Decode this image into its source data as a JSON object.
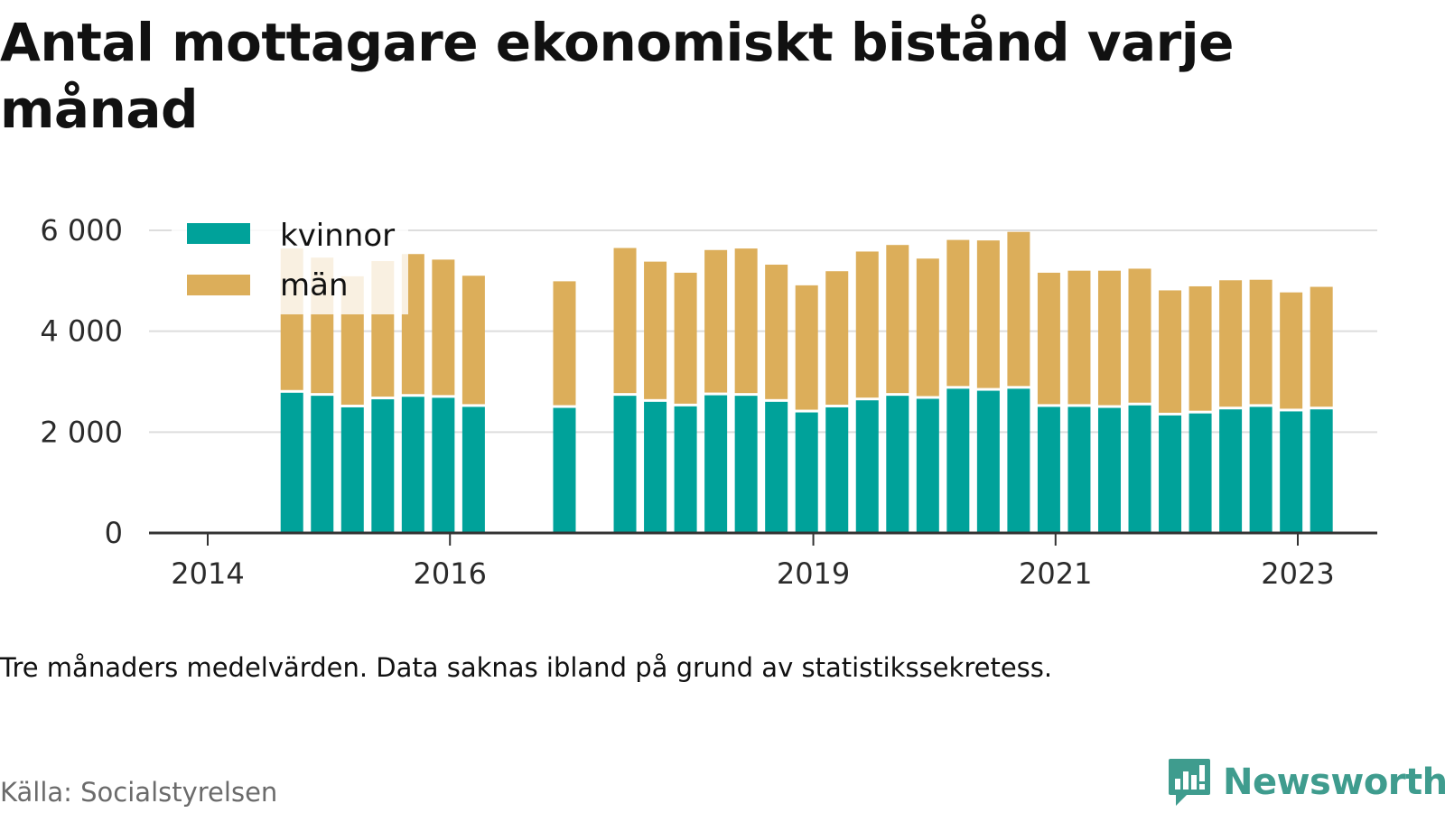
{
  "title": "Antal mottagare ekonomiskt bistånd varje månad",
  "note": "Tre månaders medelvärden. Data saknas ibland på grund av statistikssekretess.",
  "source": "Källa: Socialstyrelsen",
  "brand": {
    "name": "Newsworthy",
    "icon": "bar-chart-speech-bubble-icon",
    "color": "#3f9c8e"
  },
  "colors": {
    "kvinnor": "#00a29a",
    "man": "#dcae5a",
    "grid": "#dddddd",
    "axis": "#333333"
  },
  "chart_data": {
    "type": "bar",
    "stacked": true,
    "title": "Antal mottagare ekonomiskt bistånd varje månad",
    "xlabel": "",
    "ylabel": "",
    "ylim": [
      0,
      6000
    ],
    "yticks": [
      0,
      2000,
      4000,
      6000
    ],
    "ytick_labels": [
      "0",
      "2 000",
      "4 000",
      "6 000"
    ],
    "xticks": [
      2014,
      2016,
      2019,
      2021,
      2023
    ],
    "xtick_labels": [
      "2014",
      "2016",
      "2019",
      "2021",
      "2023"
    ],
    "grid": true,
    "legend": {
      "placement": "top-left",
      "entries": [
        "kvinnor",
        "män"
      ]
    },
    "x": [
      "2014-08",
      "2014-11",
      "2015-02",
      "2015-05",
      "2015-08",
      "2015-11",
      "2016-02",
      "2016-11",
      "2017-05",
      "2017-08",
      "2017-11",
      "2018-02",
      "2018-05",
      "2018-08",
      "2018-11",
      "2019-02",
      "2019-05",
      "2019-08",
      "2019-11",
      "2020-02",
      "2020-05",
      "2020-08",
      "2020-11",
      "2021-02",
      "2021-05",
      "2021-08",
      "2021-11",
      "2022-02",
      "2022-05",
      "2022-08",
      "2022-11",
      "2023-02"
    ],
    "series": [
      {
        "name": "kvinnor",
        "values": [
          2780,
          2720,
          2490,
          2650,
          2700,
          2680,
          2500,
          2480,
          2720,
          2600,
          2510,
          2730,
          2720,
          2600,
          2390,
          2490,
          2630,
          2720,
          2660,
          2860,
          2820,
          2860,
          2500,
          2500,
          2480,
          2530,
          2330,
          2370,
          2450,
          2500,
          2410,
          2450
        ]
      },
      {
        "name": "män",
        "values": [
          2860,
          2740,
          2600,
          2740,
          2830,
          2740,
          2600,
          2510,
          2930,
          2780,
          2650,
          2880,
          2920,
          2720,
          2520,
          2700,
          2950,
          2990,
          2780,
          2950,
          2980,
          3110,
          2660,
          2700,
          2720,
          2710,
          2480,
          2520,
          2560,
          2520,
          2360,
          2430
        ]
      }
    ]
  }
}
